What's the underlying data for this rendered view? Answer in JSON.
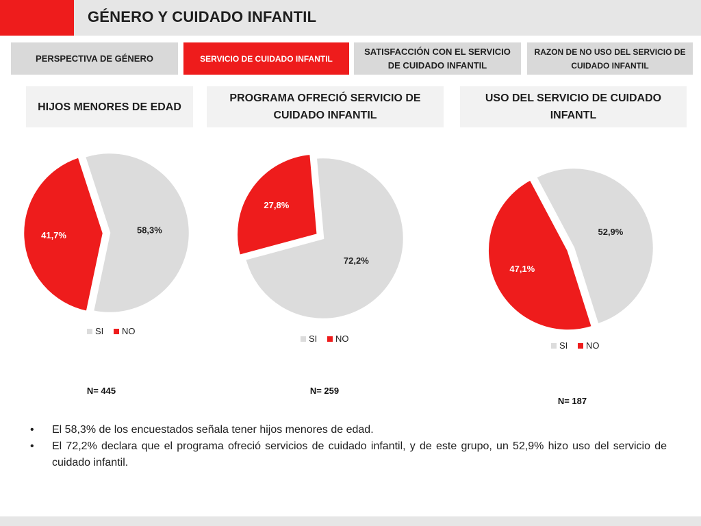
{
  "header": {
    "title": "GÉNERO Y CUIDADO INFANTIL"
  },
  "tabs": [
    {
      "label": "PERSPECTIVA DE GÉNERO",
      "active": false
    },
    {
      "label": "SERVICIO DE CUIDADO INFANTIL",
      "active": true
    },
    {
      "label": "SATISFACCIÓN CON EL SERVICIO DE CUIDADO INFANTIL",
      "active": false
    },
    {
      "label": "RAZON DE NO USO DEL SERVICIO DE CUIDADO INFANTIL",
      "active": false
    }
  ],
  "sections": [
    "HIJOS MENORES DE EDAD",
    "PROGRAMA OFRECIÓ SERVICIO DE CUIDADO INFANTIL",
    "USO DEL SERVICIO DE CUIDADO INFANTL"
  ],
  "colors": {
    "si": "#dcdcdc",
    "no": "#ee1c1c",
    "accent": "#ee1c1c"
  },
  "chart_data": [
    {
      "type": "pie",
      "labels": [
        "SI",
        "NO"
      ],
      "values": [
        58.3,
        41.7
      ],
      "value_labels": [
        "58,3%",
        "41,7%"
      ],
      "legend": [
        "SI",
        "NO"
      ],
      "legend_position": "bottom",
      "n_label": "N= 445"
    },
    {
      "type": "pie",
      "labels": [
        "SI",
        "NO"
      ],
      "values": [
        72.2,
        27.8
      ],
      "value_labels": [
        "72,2%",
        "27,8%"
      ],
      "legend": [
        "SI",
        "NO"
      ],
      "legend_position": "bottom",
      "n_label": "N= 259"
    },
    {
      "type": "pie",
      "labels": [
        "SI",
        "NO"
      ],
      "values": [
        52.9,
        47.1
      ],
      "value_labels": [
        "52,9%",
        "47,1%"
      ],
      "legend": [
        "SI",
        "NO"
      ],
      "legend_position": "bottom",
      "n_label": "N= 187"
    }
  ],
  "bullets": [
    "El 58,3% de los encuestados señala tener hijos menores de edad.",
    "El 72,2% declara que el programa ofreció servicios de cuidado infantil, y de este grupo, un 52,9% hizo uso del servicio de cuidado infantil."
  ],
  "bullet_symbol": "•"
}
